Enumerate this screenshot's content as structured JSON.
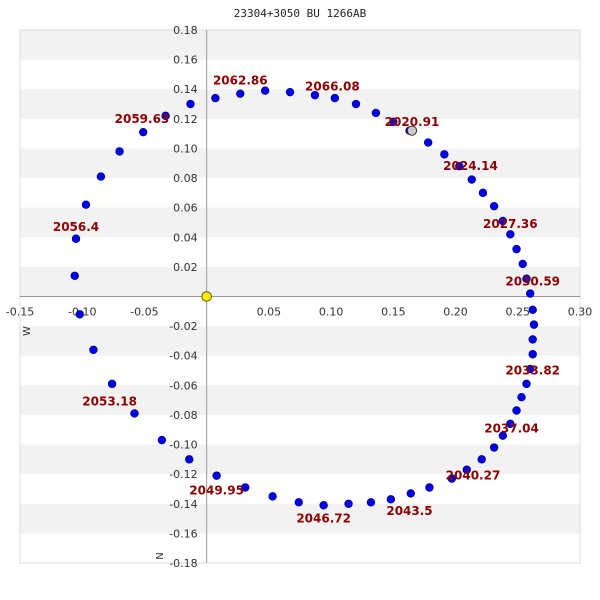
{
  "chart_data": {
    "type": "scatter",
    "title": "23304+3050 BU 1266AB",
    "xlim": [
      -0.15,
      0.3
    ],
    "ylim": [
      -0.18,
      0.18
    ],
    "x_ticks": [
      -0.15,
      -0.1,
      -0.05,
      0.05,
      0.1,
      0.15,
      0.2,
      0.25,
      0.3
    ],
    "y_ticks": [
      0.18,
      0.16,
      0.14,
      0.12,
      0.1,
      0.08,
      0.06,
      0.04,
      0.02,
      -0.02,
      -0.04,
      -0.06,
      -0.08,
      -0.1,
      -0.12,
      -0.14,
      -0.16,
      -0.18
    ],
    "x_tick_labels": [
      "-0.15",
      "-0.10",
      "-0.05",
      "0.05",
      "0.10",
      "0.15",
      "0.20",
      "0.25",
      "0.30"
    ],
    "y_tick_labels": [
      "0.18",
      "0.16",
      "0.14",
      "0.12",
      "0.10",
      "0.08",
      "0.06",
      "0.04",
      "0.02",
      "-0.02",
      "-0.04",
      "-0.06",
      "-0.08",
      "-0.10",
      "-0.12",
      "-0.14",
      "-0.16",
      "-0.18"
    ],
    "axis_letter_w": "W",
    "axis_letter_n": "N",
    "grid": "horizontal alternating bands",
    "colors": {
      "orbit_point": "#0000ee",
      "orbit_point_stroke": "#000088",
      "current_point": "#cccccc",
      "primary_star": "#ffee00",
      "year_label": "#8b0000",
      "band": "#f2f2f2",
      "axis": "#999999"
    },
    "primary": {
      "x": 0.0,
      "y": 0.0
    },
    "current_position": {
      "x": 0.165,
      "y": 0.112
    },
    "orbit_points": [
      {
        "x": 0.15,
        "y": 0.118
      },
      {
        "x": 0.163,
        "y": 0.112
      },
      {
        "x": 0.178,
        "y": 0.104
      },
      {
        "x": 0.191,
        "y": 0.096
      },
      {
        "x": 0.203,
        "y": 0.088
      },
      {
        "x": 0.213,
        "y": 0.079
      },
      {
        "x": 0.222,
        "y": 0.07
      },
      {
        "x": 0.231,
        "y": 0.061
      },
      {
        "x": 0.238,
        "y": 0.051
      },
      {
        "x": 0.244,
        "y": 0.042
      },
      {
        "x": 0.249,
        "y": 0.032
      },
      {
        "x": 0.254,
        "y": 0.022
      },
      {
        "x": 0.257,
        "y": 0.012
      },
      {
        "x": 0.26,
        "y": 0.002
      },
      {
        "x": 0.262,
        "y": -0.009
      },
      {
        "x": 0.263,
        "y": -0.019
      },
      {
        "x": 0.262,
        "y": -0.029
      },
      {
        "x": 0.262,
        "y": -0.039
      },
      {
        "x": 0.26,
        "y": -0.049
      },
      {
        "x": 0.257,
        "y": -0.059
      },
      {
        "x": 0.253,
        "y": -0.068
      },
      {
        "x": 0.249,
        "y": -0.077
      },
      {
        "x": 0.244,
        "y": -0.086
      },
      {
        "x": 0.238,
        "y": -0.094
      },
      {
        "x": 0.231,
        "y": -0.102
      },
      {
        "x": 0.221,
        "y": -0.11
      },
      {
        "x": 0.209,
        "y": -0.117
      },
      {
        "x": 0.197,
        "y": -0.123
      },
      {
        "x": 0.179,
        "y": -0.129
      },
      {
        "x": 0.164,
        "y": -0.133
      },
      {
        "x": 0.148,
        "y": -0.137
      },
      {
        "x": 0.132,
        "y": -0.139
      },
      {
        "x": 0.114,
        "y": -0.14
      },
      {
        "x": 0.094,
        "y": -0.141
      },
      {
        "x": 0.074,
        "y": -0.139
      },
      {
        "x": 0.053,
        "y": -0.135
      },
      {
        "x": 0.031,
        "y": -0.129
      },
      {
        "x": 0.008,
        "y": -0.121
      },
      {
        "x": -0.014,
        "y": -0.11
      },
      {
        "x": -0.036,
        "y": -0.097
      },
      {
        "x": -0.058,
        "y": -0.079
      },
      {
        "x": -0.076,
        "y": -0.059
      },
      {
        "x": -0.091,
        "y": -0.036
      },
      {
        "x": -0.102,
        "y": -0.012
      },
      {
        "x": -0.106,
        "y": 0.014
      },
      {
        "x": -0.105,
        "y": 0.039
      },
      {
        "x": -0.097,
        "y": 0.062
      },
      {
        "x": -0.085,
        "y": 0.081
      },
      {
        "x": -0.07,
        "y": 0.098
      },
      {
        "x": -0.051,
        "y": 0.111
      },
      {
        "x": -0.033,
        "y": 0.122
      },
      {
        "x": -0.013,
        "y": 0.13
      },
      {
        "x": 0.007,
        "y": 0.134
      },
      {
        "x": 0.027,
        "y": 0.137
      },
      {
        "x": 0.047,
        "y": 0.139
      },
      {
        "x": 0.067,
        "y": 0.138
      },
      {
        "x": 0.087,
        "y": 0.136
      },
      {
        "x": 0.103,
        "y": 0.134
      },
      {
        "x": 0.12,
        "y": 0.13
      },
      {
        "x": 0.136,
        "y": 0.124
      }
    ],
    "year_labels": [
      {
        "text": "2020.91",
        "x": 0.165,
        "y": 0.118
      },
      {
        "text": "2024.14",
        "x": 0.212,
        "y": 0.088
      },
      {
        "text": "2027.36",
        "x": 0.244,
        "y": 0.049
      },
      {
        "text": "2030.59",
        "x": 0.262,
        "y": 0.01
      },
      {
        "text": "2033.82",
        "x": 0.262,
        "y": -0.05
      },
      {
        "text": "2037.04",
        "x": 0.245,
        "y": -0.089
      },
      {
        "text": "2040.27",
        "x": 0.214,
        "y": -0.121
      },
      {
        "text": "2043.5",
        "x": 0.163,
        "y": -0.145
      },
      {
        "text": "2046.72",
        "x": 0.094,
        "y": -0.15
      },
      {
        "text": "2049.95",
        "x": 0.008,
        "y": -0.131
      },
      {
        "text": "2053.18",
        "x": -0.078,
        "y": -0.071
      },
      {
        "text": "2056.4",
        "x": -0.105,
        "y": 0.047
      },
      {
        "text": "2059.63",
        "x": -0.052,
        "y": 0.12
      },
      {
        "text": "2062.86",
        "x": 0.027,
        "y": 0.146
      },
      {
        "text": "2066.08",
        "x": 0.101,
        "y": 0.142
      }
    ]
  }
}
